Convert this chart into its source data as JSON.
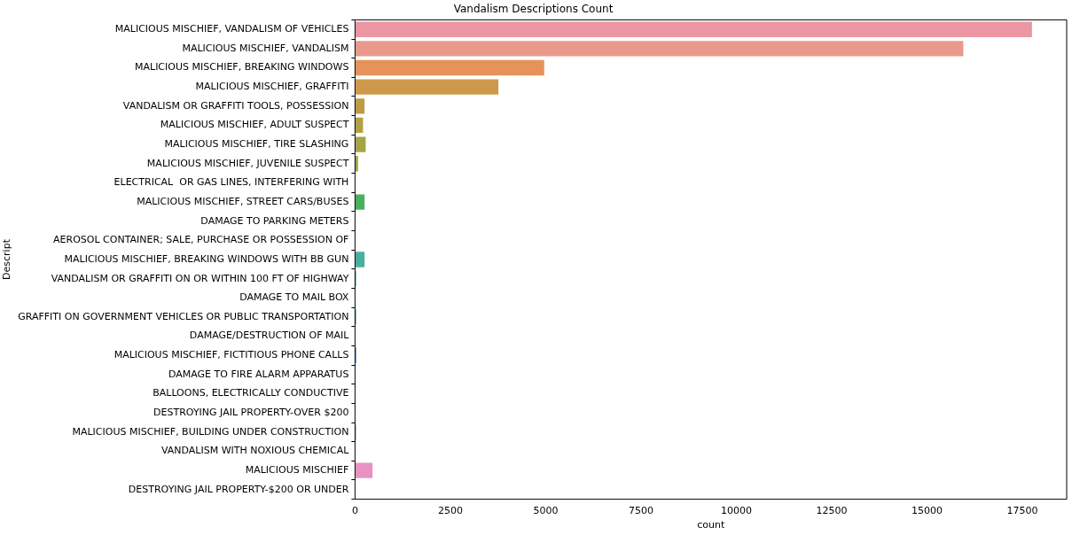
{
  "chart_data": {
    "type": "bar",
    "orientation": "horizontal",
    "title": "Vandalism Descriptions Count",
    "xlabel": "count",
    "ylabel": "Descript",
    "categories": [
      "MALICIOUS MISCHIEF, VANDALISM OF VEHICLES",
      "MALICIOUS MISCHIEF, VANDALISM",
      "MALICIOUS MISCHIEF, BREAKING WINDOWS",
      "MALICIOUS MISCHIEF, GRAFFITI",
      "VANDALISM OR GRAFFITI TOOLS, POSSESSION",
      "MALICIOUS MISCHIEF, ADULT SUSPECT",
      "MALICIOUS MISCHIEF, TIRE SLASHING",
      "MALICIOUS MISCHIEF, JUVENILE SUSPECT",
      "ELECTRICAL  OR GAS LINES, INTERFERING WITH",
      "MALICIOUS MISCHIEF, STREET CARS/BUSES",
      "DAMAGE TO PARKING METERS",
      "AEROSOL CONTAINER; SALE, PURCHASE OR POSSESSION OF",
      "MALICIOUS MISCHIEF, BREAKING WINDOWS WITH BB GUN",
      "VANDALISM OR GRAFFITI ON OR WITHIN 100 FT OF HIGHWAY",
      "DAMAGE TO MAIL BOX",
      "GRAFFITI ON GOVERNMENT VEHICLES OR PUBLIC TRANSPORTATION",
      "DAMAGE/DESTRUCTION OF MAIL",
      "MALICIOUS MISCHIEF, FICTITIOUS PHONE CALLS",
      "DAMAGE TO FIRE ALARM APPARATUS",
      "BALLOONS, ELECTRICALLY CONDUCTIVE",
      "DESTROYING JAIL PROPERTY-OVER $200",
      "MALICIOUS MISCHIEF, BUILDING UNDER CONSTRUCTION",
      "VANDALISM WITH NOXIOUS CHEMICAL",
      "MALICIOUS MISCHIEF",
      "DESTROYING JAIL PROPERTY-$200 OR UNDER"
    ],
    "values": [
      17750,
      15950,
      4960,
      3760,
      250,
      210,
      280,
      80,
      0,
      250,
      0,
      0,
      250,
      30,
      0,
      30,
      0,
      35,
      0,
      0,
      0,
      30,
      0,
      460,
      0
    ],
    "colors": [
      "#ea96a3",
      "#e8998b",
      "#e5935b",
      "#cf994b",
      "#bb9c45",
      "#b0a145",
      "#a4a546",
      "#98aa47",
      "#86af48",
      "#4bb05e",
      "#48ae7c",
      "#49ad8c",
      "#4aae9f",
      "#4aabae",
      "#4caab9",
      "#4fa8c6",
      "#53a4d6",
      "#6aa0e0",
      "#8c9be3",
      "#a994e3",
      "#c18de2",
      "#d58ad9",
      "#e28bcd",
      "#e892c4",
      "#ea95b2"
    ],
    "xlim": [
      0,
      18660
    ],
    "xticks": [
      0,
      2500,
      5000,
      7500,
      10000,
      12500,
      15000,
      17500
    ],
    "grid": false,
    "legend": false
  }
}
